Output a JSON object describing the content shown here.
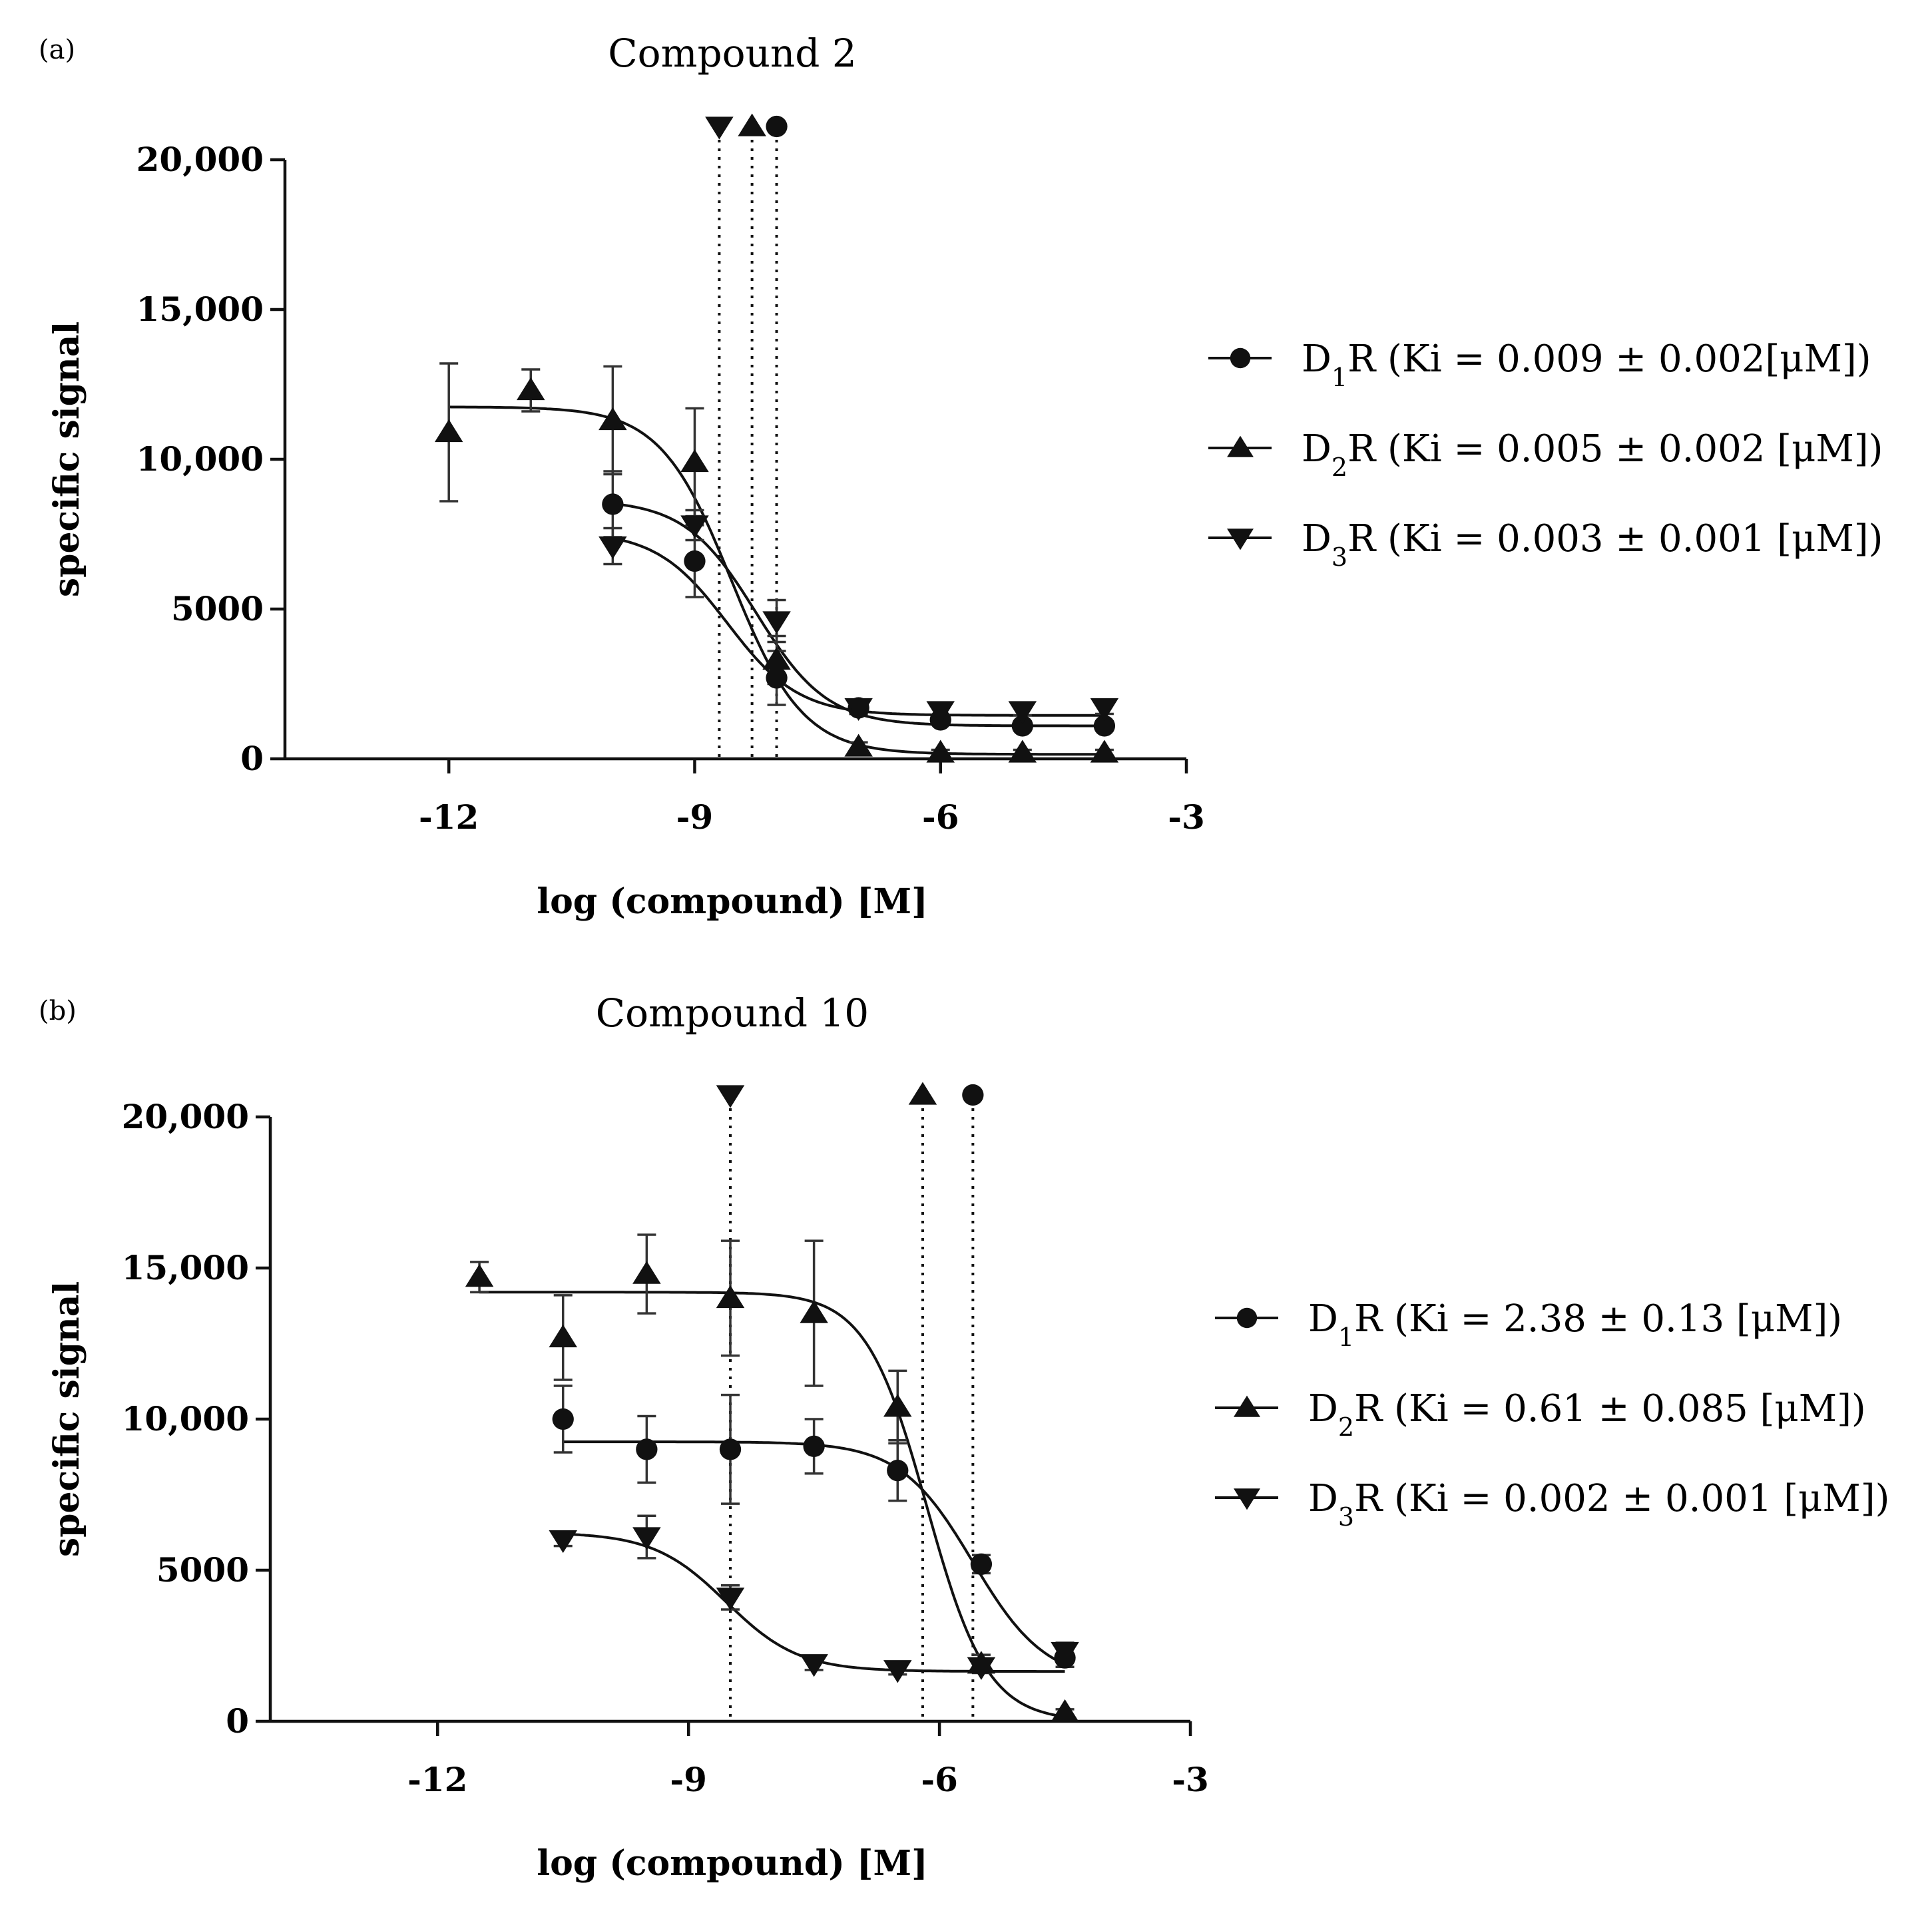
{
  "chart_data": [
    {
      "type": "scatter",
      "panel_label": "(a)",
      "title": "Compound 2",
      "xlabel": "log (compound) [M]",
      "ylabel": "specific signal",
      "xlim": [
        -14,
        -3
      ],
      "ylim": [
        0,
        20000
      ],
      "xticks": [
        "-12",
        "-9",
        "-6",
        "-3"
      ],
      "yticks": [
        "0",
        "5000",
        "10,000",
        "15,000",
        "20,000"
      ],
      "legend": {
        "position": "right",
        "entries": [
          {
            "sub": "1",
            "text": "(Ki = 0.009 ± 0.002[μM])"
          },
          {
            "sub": "2",
            "text": "(Ki = 0.005 ± 0.002 [μM])"
          },
          {
            "sub": "3",
            "text": "(Ki = 0.003 ± 0.001 [μM])"
          }
        ]
      },
      "series": [
        {
          "name": "D1R",
          "marker": "circle",
          "x": [
            -10,
            -9,
            -8,
            -7,
            -6,
            -5,
            -4
          ],
          "y": [
            8500,
            6600,
            2700,
            1700,
            1300,
            1100,
            1100
          ],
          "err": [
            1100,
            1200,
            900,
            200,
            150,
            150,
            150
          ],
          "fit": {
            "top": 8650,
            "bottom": 1100,
            "logic50": -8.25,
            "hill": 1
          }
        },
        {
          "name": "D2R",
          "marker": "triangle-up",
          "x": [
            -12,
            -11,
            -10,
            -9,
            -8,
            -7,
            -6,
            -5,
            -4
          ],
          "y": [
            10900,
            12300,
            11300,
            9900,
            3300,
            400,
            200,
            200,
            200
          ],
          "err": [
            2300,
            700,
            1800,
            1800,
            800,
            150,
            100,
            100,
            100
          ],
          "fit": {
            "top": 11750,
            "bottom": 150,
            "logic50": -8.55,
            "hill": 1
          }
        },
        {
          "name": "D3R",
          "marker": "triangle-down",
          "x": [
            -10,
            -9,
            -8,
            -7,
            -6,
            -5,
            -4
          ],
          "y": [
            7100,
            7800,
            4600,
            1700,
            1600,
            1600,
            1700
          ],
          "err": [
            600,
            500,
            700,
            200,
            150,
            150,
            200
          ],
          "fit": {
            "top": 7600,
            "bottom": 1450,
            "logic50": -8.6,
            "hill": 1
          }
        }
      ],
      "ki_markers": [
        {
          "series": "D3R",
          "x": -8.7
        },
        {
          "series": "D2R",
          "x": -8.3
        },
        {
          "series": "D1R",
          "x": -8.0
        }
      ]
    },
    {
      "type": "scatter",
      "panel_label": "(b)",
      "title": "Compound 10",
      "xlabel": "log (compound) [M]",
      "ylabel": "specific signal",
      "xlim": [
        -14,
        -3
      ],
      "ylim": [
        0,
        20000
      ],
      "xticks": [
        "-12",
        "-9",
        "-6",
        "-3"
      ],
      "yticks": [
        "0",
        "5000",
        "10,000",
        "15,000",
        "20,000"
      ],
      "legend": {
        "position": "right",
        "entries": [
          {
            "sub": "1",
            "text": "(Ki =  2.38 ± 0.13 [μM])"
          },
          {
            "sub": "2",
            "text": "(Ki = 0.61 ± 0.085 [μM])"
          },
          {
            "sub": "3",
            "text": "(Ki = 0.002 ± 0.001 [μM])"
          }
        ]
      },
      "series": [
        {
          "name": "D1R",
          "marker": "circle",
          "x": [
            -10.5,
            -9.5,
            -8.5,
            -7.5,
            -6.5,
            -5.5,
            -4.5
          ],
          "y": [
            10000,
            9000,
            9000,
            9100,
            8300,
            5200,
            2100
          ],
          "err": [
            1100,
            1100,
            1800,
            900,
            1000,
            300,
            300
          ],
          "fit": {
            "top": 9250,
            "bottom": 1300,
            "logic50": -5.6,
            "hill": 1
          }
        },
        {
          "name": "D2R",
          "marker": "triangle-up",
          "x": [
            -11.5,
            -10.5,
            -9.5,
            -8.5,
            -7.5,
            -6.5,
            -5.5,
            -4.5
          ],
          "y": [
            14700,
            12700,
            14800,
            14000,
            13500,
            10400,
            1900,
            300
          ],
          "err": [
            500,
            1400,
            1300,
            1900,
            2400,
            1200,
            300,
            100
          ],
          "fit": {
            "top": 14200,
            "bottom": 0,
            "logic50": -6.15,
            "hill": 1.2
          }
        },
        {
          "name": "D3R",
          "marker": "triangle-down",
          "x": [
            -10.5,
            -9.5,
            -8.5,
            -7.5,
            -6.5,
            -5.5,
            -4.5
          ],
          "y": [
            6000,
            6100,
            4100,
            1900,
            1700,
            1800,
            2300
          ],
          "err": [
            200,
            700,
            400,
            200,
            150,
            200,
            300
          ],
          "fit": {
            "top": 6250,
            "bottom": 1650,
            "logic50": -8.55,
            "hill": 1
          }
        }
      ],
      "ki_markers": [
        {
          "series": "D3R",
          "x": -8.5
        },
        {
          "series": "D2R",
          "x": -6.2
        },
        {
          "series": "D1R",
          "x": -5.6
        }
      ]
    }
  ]
}
